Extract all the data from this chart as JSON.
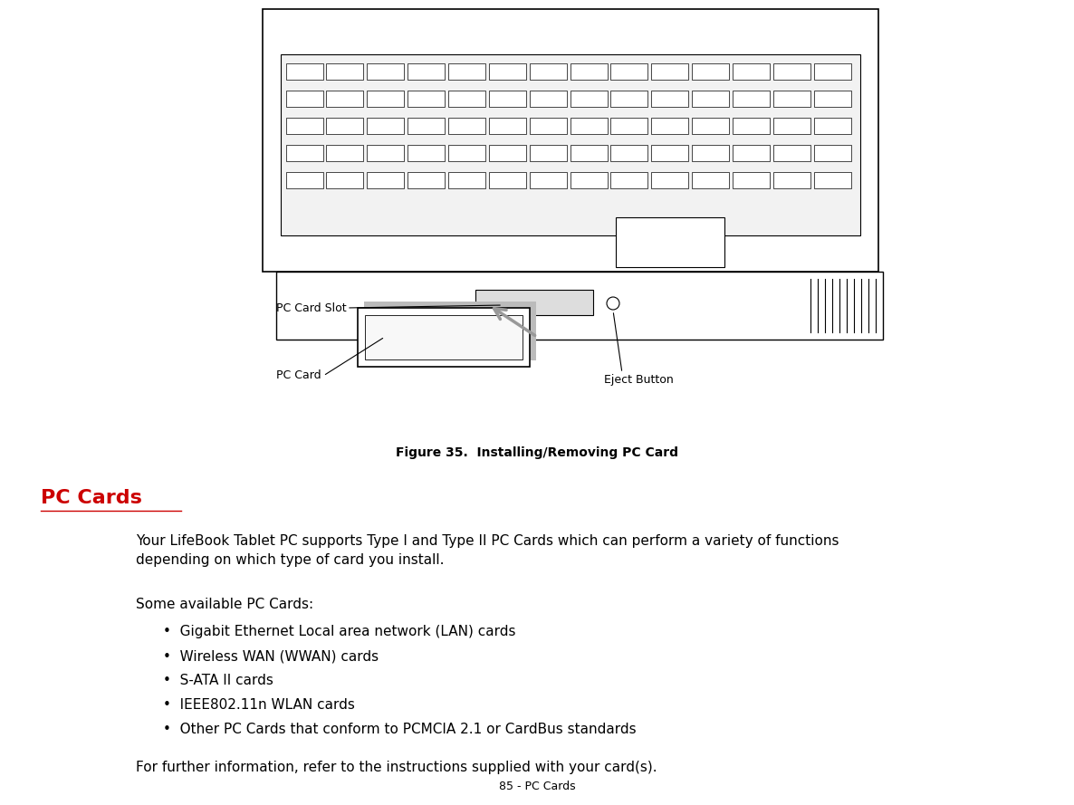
{
  "bg_color": "#ffffff",
  "figure_caption": "Figure 35.  Installing/Removing PC Card",
  "section_title": "PC Cards",
  "section_title_color": "#cc0000",
  "paragraph1": "Your LifeBook Tablet PC supports Type I and Type II PC Cards which can perform a variety of functions\ndepending on which type of card you install.",
  "paragraph2": "Some available PC Cards:",
  "bullet_items": [
    "Gigabit Ethernet Local area network (LAN) cards",
    "Wireless WAN (WWAN) cards",
    "S-ATA II cards",
    "IEEE802.11n WLAN cards",
    "Other PC Cards that conform to PCMCIA 2.1 or CardBus standards"
  ],
  "paragraph3": "For further information, refer to the instructions supplied with your card(s).",
  "footer": "85 - PC Cards",
  "label_pc_card_slot": "PC Card Slot",
  "label_pc_card": "PC Card",
  "label_eject_button": "Eject Button",
  "font_size_body": 11,
  "font_size_caption": 10,
  "font_size_section": 16,
  "font_size_footer": 9,
  "font_size_diagram_label": 9
}
